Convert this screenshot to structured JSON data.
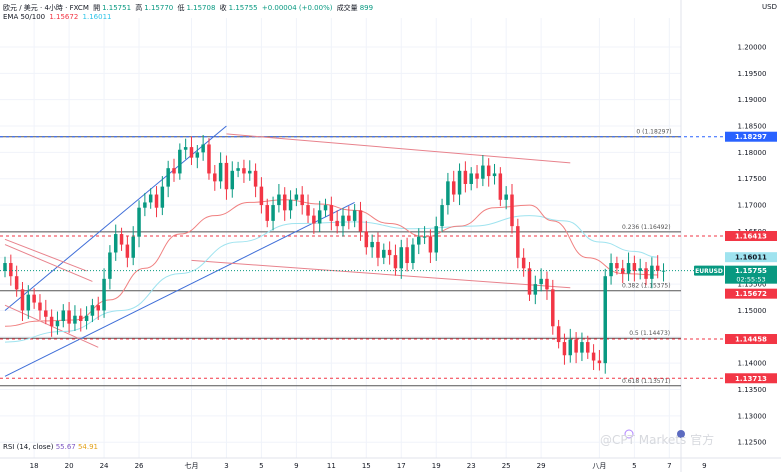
{
  "header": {
    "symbol": "欧元 / 美元 · 4小時 · FXCM",
    "open_label": "開",
    "open": "1.15751",
    "high_label": "高",
    "high": "1.15770",
    "low_label": "低",
    "low": "1.15708",
    "close_label": "收",
    "close": "1.15755",
    "change": "+0.00004 (+0.00%)",
    "volume_label": "成交量",
    "volume": "899",
    "ema_label": "EMA 50/100",
    "ema50": "1.15672",
    "ema100": "1.16011"
  },
  "currency": "USD",
  "rsi": {
    "label": "RSI (14, close)",
    "v1": "55.67",
    "v2": "54.91"
  },
  "watermark": "@CPT Markets 官方",
  "colors": {
    "up": "#089981",
    "down": "#f23645",
    "ema50": "#f08080",
    "ema100": "#9fe3ef",
    "trend_blue": "#3f6ed8",
    "trend_red": "#e8828c",
    "fib": "#555555",
    "bg": "#ffffff",
    "axis_text": "#131722"
  },
  "chart_data": {
    "type": "candlestick",
    "symbol": "EURUSD",
    "timeframe": "4小時",
    "ylim": [
      1.122,
      1.2055
    ],
    "xlim": [
      0,
      116
    ],
    "y_ticks": [
      "1.20000",
      "1.19500",
      "1.19000",
      "1.18500",
      "1.18000",
      "1.17500",
      "1.17000",
      "1.16500",
      "1.16000",
      "1.15500",
      "1.15000",
      "1.14500",
      "1.14000",
      "1.13500",
      "1.13000",
      "1.12500"
    ],
    "x_ticks": [
      {
        "label": "18",
        "x": 5
      },
      {
        "label": "20",
        "x": 11
      },
      {
        "label": "24",
        "x": 17
      },
      {
        "label": "26",
        "x": 23
      },
      {
        "label": "七月",
        "x": 32
      },
      {
        "label": "3",
        "x": 38
      },
      {
        "label": "5",
        "x": 44
      },
      {
        "label": "9",
        "x": 50
      },
      {
        "label": "11",
        "x": 56
      },
      {
        "label": "15",
        "x": 62
      },
      {
        "label": "17",
        "x": 68
      },
      {
        "label": "19",
        "x": 74
      },
      {
        "label": "23",
        "x": 80
      },
      {
        "label": "25",
        "x": 86
      },
      {
        "label": "29",
        "x": 92
      },
      {
        "label": "八月",
        "x": 102
      },
      {
        "label": "5",
        "x": 108
      },
      {
        "label": "7",
        "x": 114
      },
      {
        "label": "9",
        "x": 120
      }
    ],
    "closes": [
      1.159,
      1.1565,
      1.154,
      1.15,
      1.153,
      1.1515,
      1.15,
      1.1488,
      1.147,
      1.148,
      1.15,
      1.1475,
      1.149,
      1.148,
      1.149,
      1.151,
      1.15,
      1.156,
      1.161,
      1.1645,
      1.1625,
      1.16,
      1.164,
      1.1695,
      1.1705,
      1.172,
      1.1695,
      1.1735,
      1.177,
      1.176,
      1.1805,
      1.181,
      1.179,
      1.18,
      1.1815,
      1.176,
      1.1745,
      1.178,
      1.173,
      1.1765,
      1.177,
      1.176,
      1.1765,
      1.1735,
      1.17,
      1.167,
      1.17,
      1.172,
      1.169,
      1.171,
      1.172,
      1.17,
      1.168,
      1.1665,
      1.169,
      1.17,
      1.167,
      1.166,
      1.168,
      1.167,
      1.169,
      1.165,
      1.162,
      1.163,
      1.16,
      1.1615,
      1.1605,
      1.158,
      1.162,
      1.159,
      1.1625,
      1.164,
      1.164,
      1.161,
      1.166,
      1.17,
      1.1745,
      1.172,
      1.1765,
      1.174,
      1.176,
      1.175,
      1.1775,
      1.1755,
      1.176,
      1.171,
      1.172,
      1.166,
      1.16,
      1.158,
      1.153,
      1.155,
      1.156,
      1.154,
      1.147,
      1.144,
      1.1415,
      1.1445,
      1.142,
      1.144,
      1.142,
      1.1405,
      1.14,
      1.1565,
      1.159,
      1.158,
      1.157,
      1.159,
      1.1575,
      1.158,
      1.156,
      1.1585,
      1.1575,
      1.15755
    ],
    "ema50": [
      [
        0,
        1.147
      ],
      [
        6,
        1.148
      ],
      [
        12,
        1.1482
      ],
      [
        18,
        1.152
      ],
      [
        24,
        1.158
      ],
      [
        30,
        1.1645
      ],
      [
        36,
        1.168
      ],
      [
        42,
        1.1705
      ],
      [
        48,
        1.171
      ],
      [
        54,
        1.1702
      ],
      [
        60,
        1.169
      ],
      [
        66,
        1.1665
      ],
      [
        72,
        1.164
      ],
      [
        78,
        1.166
      ],
      [
        84,
        1.1695
      ],
      [
        90,
        1.17
      ],
      [
        94,
        1.167
      ],
      [
        100,
        1.16
      ],
      [
        106,
        1.157
      ],
      [
        112,
        1.15672
      ]
    ],
    "ema100": [
      [
        0,
        1.144
      ],
      [
        10,
        1.146
      ],
      [
        20,
        1.15
      ],
      [
        30,
        1.157
      ],
      [
        40,
        1.163
      ],
      [
        50,
        1.1665
      ],
      [
        60,
        1.1668
      ],
      [
        70,
        1.1655
      ],
      [
        80,
        1.166
      ],
      [
        90,
        1.168
      ],
      [
        96,
        1.167
      ],
      [
        102,
        1.163
      ],
      [
        108,
        1.1612
      ],
      [
        112,
        1.16011
      ]
    ],
    "trendlines": [
      {
        "kind": "blue",
        "points": [
          [
            0,
            1.15
          ],
          [
            38,
            1.185
          ]
        ]
      },
      {
        "kind": "blue",
        "points": [
          [
            0,
            1.1375
          ],
          [
            60,
            1.1705
          ]
        ]
      },
      {
        "kind": "red",
        "points": [
          [
            38,
            1.1835
          ],
          [
            97,
            1.178
          ]
        ]
      },
      {
        "kind": "red",
        "points": [
          [
            0,
            1.1625
          ],
          [
            15,
            1.1555
          ]
        ]
      },
      {
        "kind": "red",
        "points": [
          [
            0,
            1.151
          ],
          [
            16,
            1.143
          ]
        ]
      },
      {
        "kind": "red",
        "points": [
          [
            32,
            1.1595
          ],
          [
            97,
            1.1543
          ]
        ]
      },
      {
        "kind": "red",
        "points": [
          [
            0,
            1.1635
          ],
          [
            14,
            1.1575
          ]
        ]
      }
    ],
    "fib_levels": [
      {
        "ratio": "0",
        "label": "0 (1.18297)",
        "price": 1.18297,
        "tag": "1.18297",
        "tag_color": "#2962ff"
      },
      {
        "ratio": "0.236",
        "label": "0.236 (1.16492)",
        "price": 1.16492,
        "tag": "1.16413",
        "tag_color": "#f23645"
      },
      {
        "ratio": "0.382",
        "label": "0.382 (1.15375)",
        "price": 1.15375,
        "tag": null,
        "tag_color": null
      },
      {
        "ratio": "0.5",
        "label": "0.5 (1.14473)",
        "price": 1.14473,
        "tag": "1.14458",
        "tag_color": "#f23645"
      },
      {
        "ratio": "0.618",
        "label": "0.618 (1.13571)",
        "price": 1.13571,
        "tag": "1.13713",
        "tag_color": "#f23645"
      }
    ],
    "dashed_levels": [
      {
        "price": 1.18297,
        "color": "#2962ff"
      },
      {
        "price": 1.16413,
        "color": "#f23645"
      },
      {
        "price": 1.14458,
        "color": "#f23645"
      },
      {
        "price": 1.13713,
        "color": "#f23645"
      }
    ],
    "price_tags": [
      {
        "label": "1.16011",
        "price": 1.16011,
        "bg": "#9fe3ef",
        "fg": "#131722"
      },
      {
        "label": "EURUSD",
        "price": 1.15755,
        "bg": "#089981",
        "fg": "#ffffff"
      },
      {
        "label": "1.15755",
        "price": 1.15755,
        "bg": "#089981",
        "fg": "#ffffff"
      },
      {
        "label": "02:55:53",
        "price": 1.15755,
        "bg": "#089981",
        "fg": "#ffffff"
      },
      {
        "label": "1.15672",
        "price": 1.15672,
        "bg": "#f23645",
        "fg": "#ffffff"
      }
    ]
  }
}
